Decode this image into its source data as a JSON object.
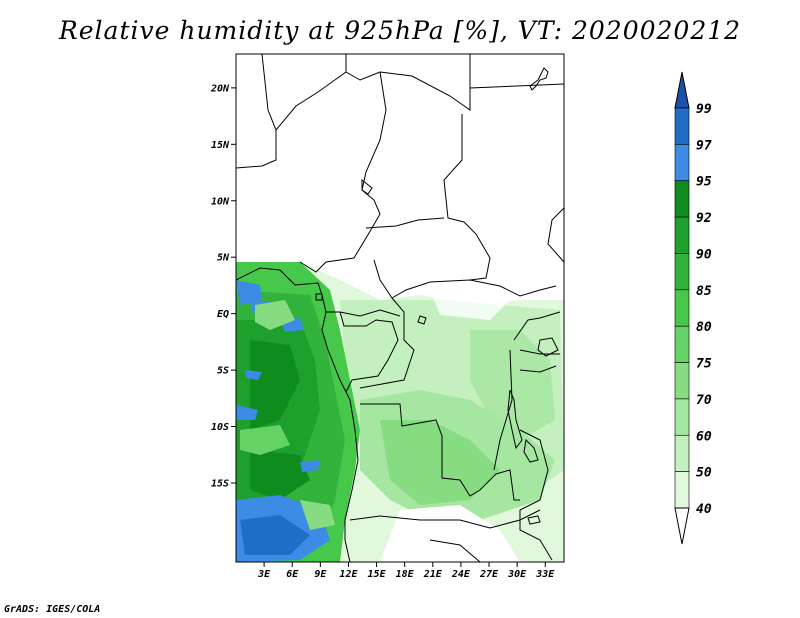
{
  "title": "Relative humidity at 925hPa [%], VT: 2020020212",
  "credit": "GrADS: IGES/COLA",
  "map": {
    "lon_range": [
      0,
      35
    ],
    "lat_range": [
      -22,
      23
    ],
    "lat_ticks": [
      {
        "value": 20,
        "label": "20N"
      },
      {
        "value": 15,
        "label": "15N"
      },
      {
        "value": 10,
        "label": "10N"
      },
      {
        "value": 5,
        "label": "5N"
      },
      {
        "value": 0,
        "label": "EQ"
      },
      {
        "value": -5,
        "label": "5S"
      },
      {
        "value": -10,
        "label": "10S"
      },
      {
        "value": -15,
        "label": "15S"
      }
    ],
    "lon_ticks": [
      {
        "value": 3,
        "label": "3E"
      },
      {
        "value": 6,
        "label": "6E"
      },
      {
        "value": 9,
        "label": "9E"
      },
      {
        "value": 12,
        "label": "12E"
      },
      {
        "value": 15,
        "label": "15E"
      },
      {
        "value": 18,
        "label": "18E"
      },
      {
        "value": 21,
        "label": "21E"
      },
      {
        "value": 24,
        "label": "24E"
      },
      {
        "value": 27,
        "label": "27E"
      },
      {
        "value": 30,
        "label": "30E"
      },
      {
        "value": 33,
        "label": "33E"
      }
    ]
  },
  "colorbar": {
    "levels": [
      {
        "label": "99",
        "color": "#1e6ec8"
      },
      {
        "label": "97",
        "color": "#3c8ce6"
      },
      {
        "label": "95",
        "color": "#0f8c1e"
      },
      {
        "label": "92",
        "color": "#1ea02d"
      },
      {
        "label": "90",
        "color": "#32b43c"
      },
      {
        "label": "85",
        "color": "#46c84b"
      },
      {
        "label": "80",
        "color": "#64d264"
      },
      {
        "label": "75",
        "color": "#87dc82"
      },
      {
        "label": "70",
        "color": "#a5e6a0"
      },
      {
        "label": "60",
        "color": "#c3f0be"
      },
      {
        "label": "50",
        "color": "#e1f8dc"
      },
      {
        "label": "40",
        "color": "#ffffff"
      }
    ],
    "top_color": "#1e50aa"
  }
}
